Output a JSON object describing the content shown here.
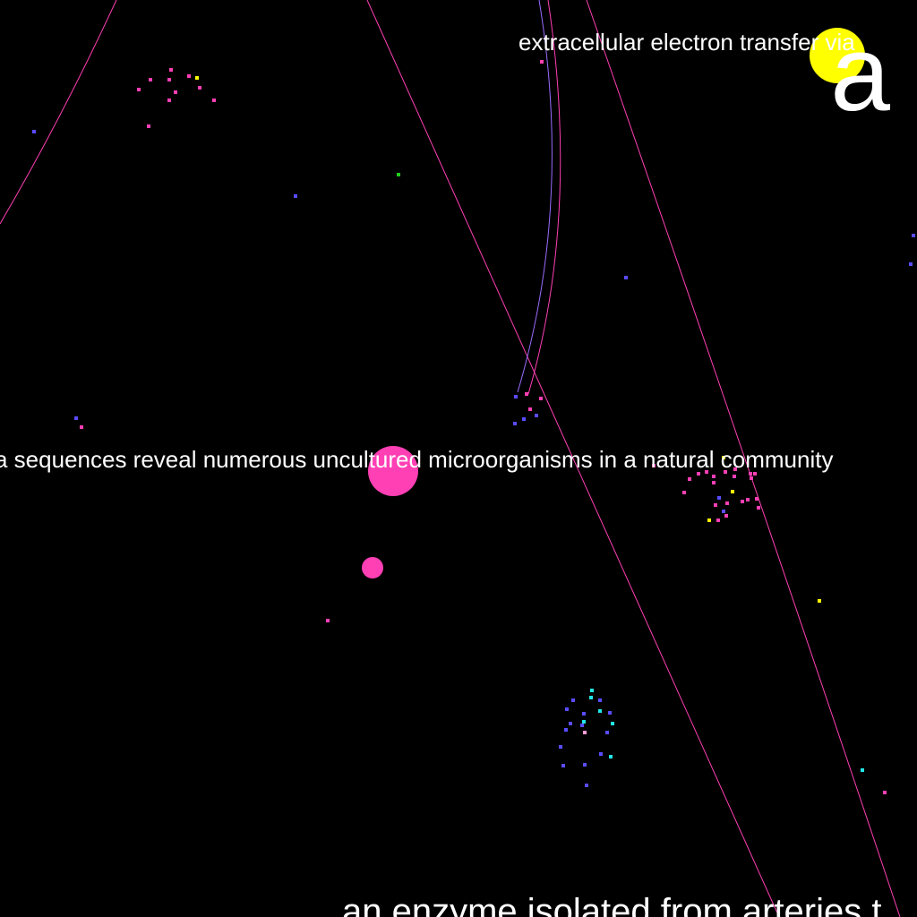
{
  "colors": {
    "background": "#000000",
    "text": "#ffffff",
    "pink": "#ff3fb4",
    "blue": "#5a4cff",
    "violet": "#9a6cff",
    "yellow": "#ffff00",
    "cyan": "#22e6e6",
    "green": "#22cc22",
    "light_pink": "#ff9ad6"
  },
  "labels": {
    "top": "extracellular electron transfer via",
    "middle": "a sequences reveal numerous uncultured microorganisms in a natural community",
    "bottom": "an enzyme isolated from arteries t",
    "corner_letter": "a"
  }
}
